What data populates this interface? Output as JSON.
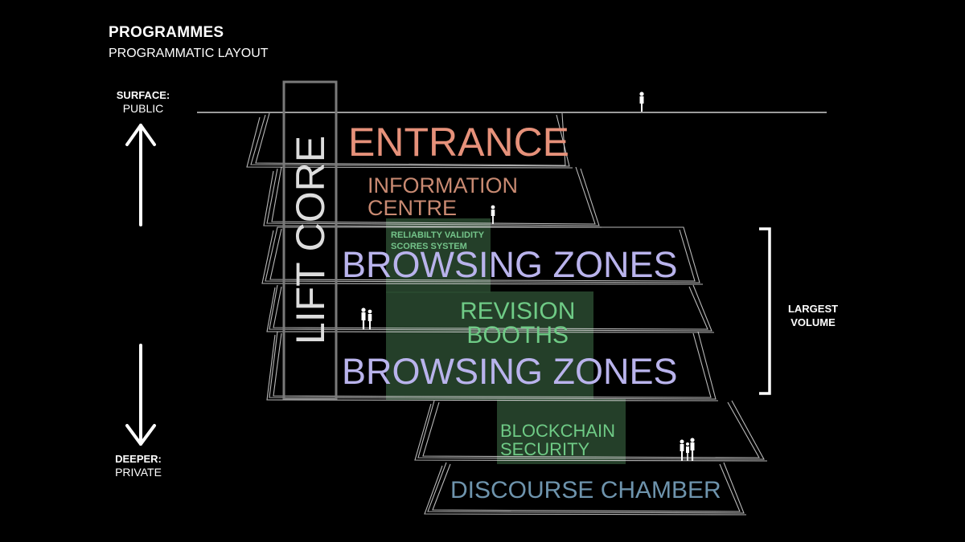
{
  "header": {
    "title": "PROGRAMMES",
    "subtitle": "PROGRAMMATIC LAYOUT"
  },
  "axis": {
    "surface_title": "SURFACE:",
    "surface_sub": "PUBLIC",
    "deeper_title": "DEEPER:",
    "deeper_sub": "PRIVATE"
  },
  "bracket": {
    "line1": "LARGEST",
    "line2": "VOLUME"
  },
  "core": {
    "label": "LIFT CORE"
  },
  "zones": {
    "entrance": "ENTRANCE",
    "info_line1": "INFORMATION",
    "info_line2": "CENTRE",
    "reliability_line1": "RELIABILTY VALIDITY",
    "reliability_line2": "SCORES SYSTEM",
    "browsing_upper": "BROWSING ZONES",
    "revision_line1": "REVISION",
    "revision_line2": "BOOTHS",
    "browsing_lower": "BROWSING ZONES",
    "blockchain_line1": "BLOCKCHAIN",
    "blockchain_line2": "SECURITY",
    "discourse": "DISCOURSE CHAMBER"
  },
  "colors": {
    "background": "#000000",
    "entrance": "#e6917a",
    "info": "#c98a72",
    "browsing": "#b9b3ec",
    "green_text": "#6fcb86",
    "green_box": "#2a4a30",
    "discourse": "#6e94ad"
  }
}
